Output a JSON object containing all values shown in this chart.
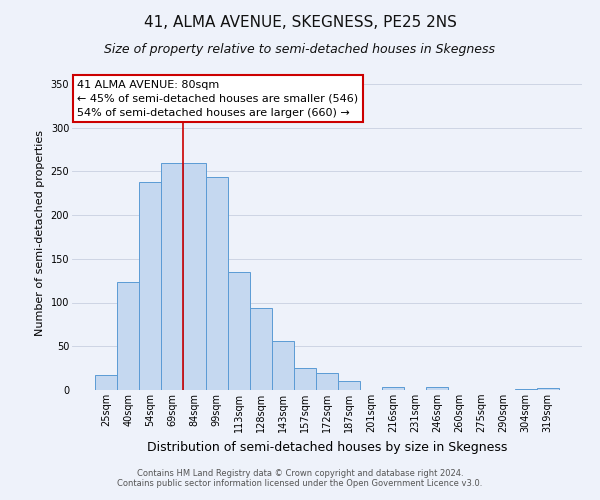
{
  "title": "41, ALMA AVENUE, SKEGNESS, PE25 2NS",
  "subtitle": "Size of property relative to semi-detached houses in Skegness",
  "xlabel": "Distribution of semi-detached houses by size in Skegness",
  "ylabel": "Number of semi-detached properties",
  "footnote1": "Contains HM Land Registry data © Crown copyright and database right 2024.",
  "footnote2": "Contains public sector information licensed under the Open Government Licence v3.0.",
  "bin_labels": [
    "25sqm",
    "40sqm",
    "54sqm",
    "69sqm",
    "84sqm",
    "99sqm",
    "113sqm",
    "128sqm",
    "143sqm",
    "157sqm",
    "172sqm",
    "187sqm",
    "201sqm",
    "216sqm",
    "231sqm",
    "246sqm",
    "260sqm",
    "275sqm",
    "290sqm",
    "304sqm",
    "319sqm"
  ],
  "bar_heights": [
    17,
    123,
    238,
    259,
    259,
    243,
    135,
    94,
    56,
    25,
    20,
    10,
    0,
    3,
    0,
    4,
    0,
    0,
    0,
    1,
    2
  ],
  "bar_color": "#c5d8f0",
  "bar_edge_color": "#5b9bd5",
  "annotation_title": "41 ALMA AVENUE: 80sqm",
  "annotation_line1": "← 45% of semi-detached houses are smaller (546)",
  "annotation_line2": "54% of semi-detached houses are larger (660) →",
  "annotation_box_facecolor": "#ffffff",
  "annotation_box_edgecolor": "#cc0000",
  "vline_color": "#cc0000",
  "vline_x": 3.5,
  "ylim": [
    0,
    360
  ],
  "yticks": [
    0,
    50,
    100,
    150,
    200,
    250,
    300,
    350
  ],
  "background_color": "#eef2fa",
  "grid_color": "#c8d0e0",
  "title_fontsize": 11,
  "subtitle_fontsize": 9,
  "ylabel_fontsize": 8,
  "xlabel_fontsize": 9,
  "tick_fontsize": 7,
  "annotation_fontsize": 8,
  "footnote_fontsize": 6
}
